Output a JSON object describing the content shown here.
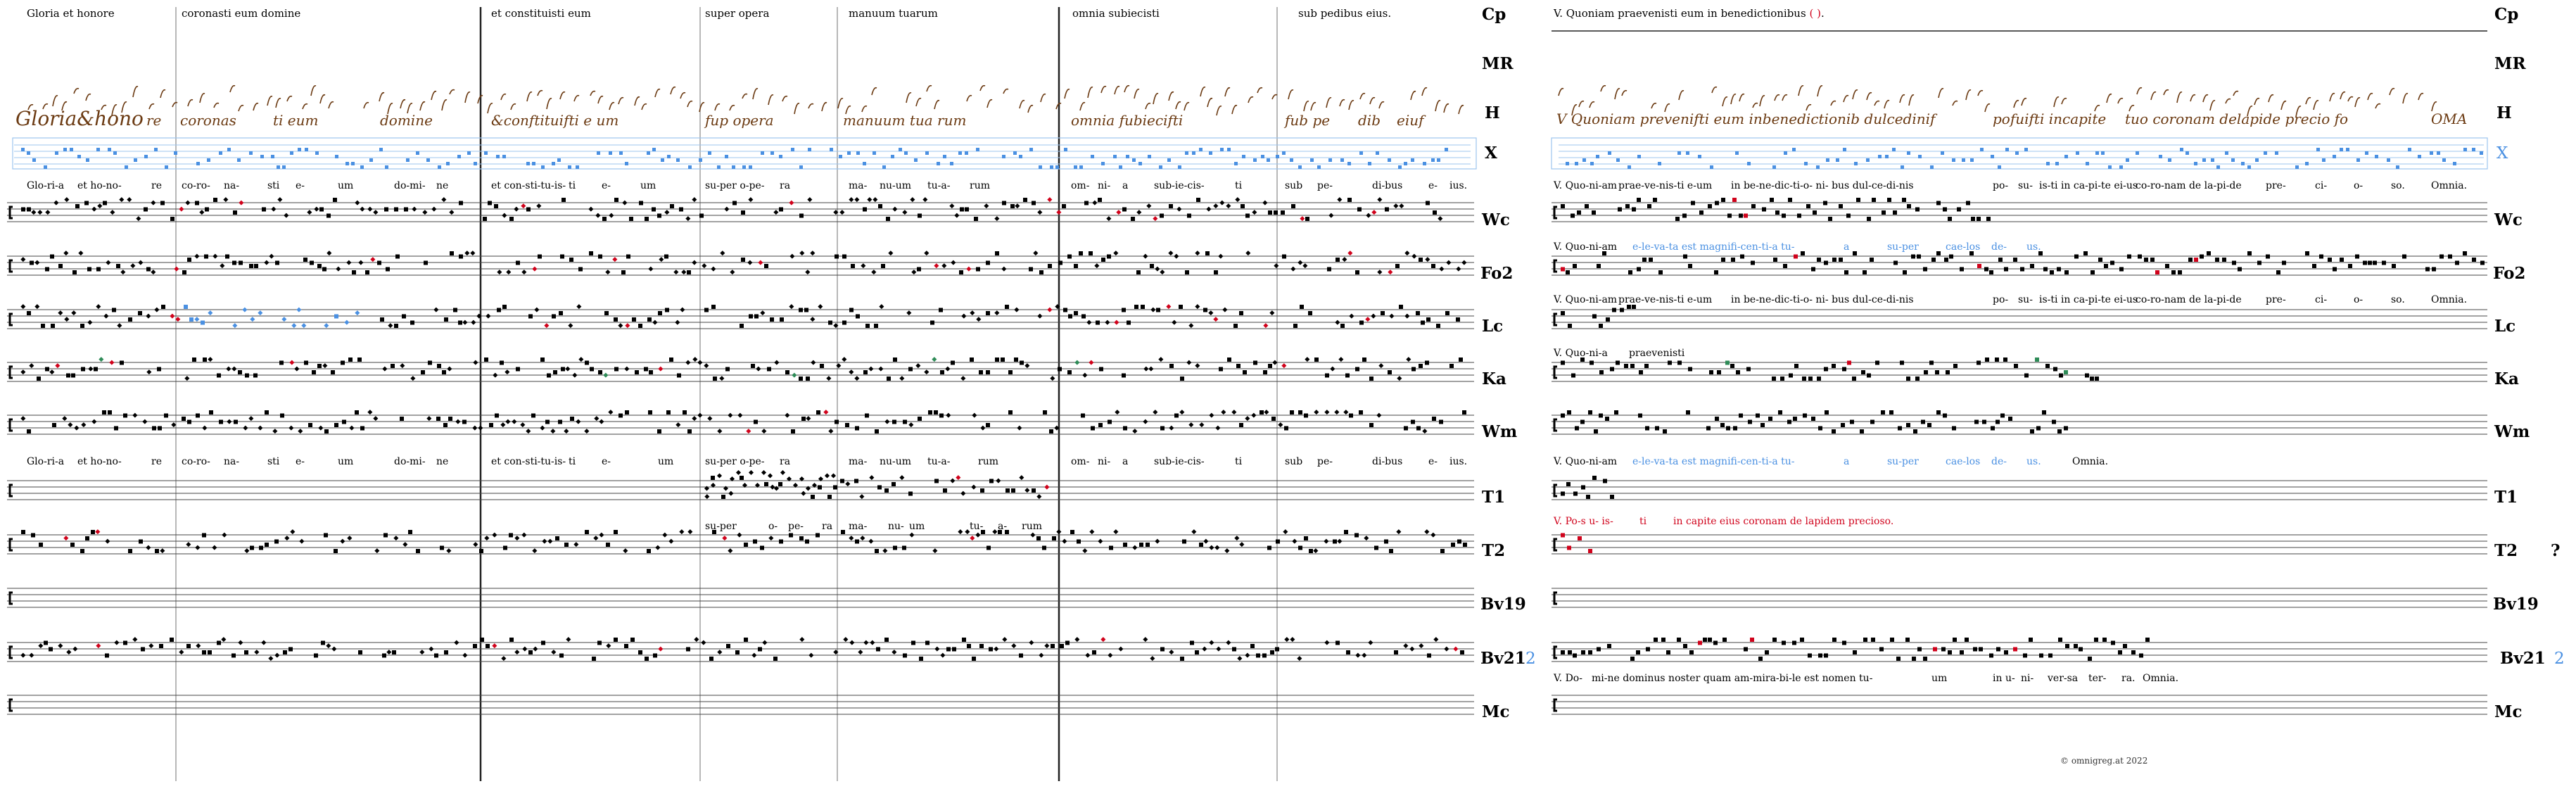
{
  "left_panel": {
    "header_segments": [
      "Gloria et honore",
      "coronasti eum domine",
      "et constituisti eum",
      "super opera",
      "manuum tuarum",
      "omnia subiecisti",
      "sub pedibus eius."
    ],
    "neume_words": [
      "Gloria&hono",
      "re",
      "coronas",
      "ti eum",
      "domine",
      "&conftituifti e um",
      "fup opera",
      "manuum tua rum",
      "omnia fubiecifti",
      "fub pe",
      "dib",
      "eiuf"
    ],
    "lyrics_x": [
      "Glo-ri-a",
      "et ho-no-",
      "re",
      "co-ro-",
      "na-",
      "sti",
      "e-",
      "um",
      "do-mi-",
      "ne"
    ],
    "lyrics_x_cont": [
      "et con-sti-tu-is-",
      "ti",
      "e-",
      "um",
      "su-per o-pe-",
      "ra",
      "ma-",
      "nu-um",
      "tu-a-",
      "rum",
      "om-",
      "ni-",
      "a",
      "sub-ie-cis-",
      "ti",
      "sub",
      "pe-",
      "di-bus",
      "e-",
      "ius."
    ],
    "lyrics_wm": [
      "Glo-ri-a",
      "et ho-no-",
      "re",
      "co-ro-",
      "na-",
      "sti",
      "e-",
      "um",
      "do-mi-",
      "ne",
      "et con-sti-tu-is-",
      "ti",
      "e-",
      "um",
      "su-per o-pe-",
      "ra",
      "ma-",
      "nu-um",
      "tu-a-",
      "rum",
      "om-",
      "ni-",
      "a",
      "sub-ie-cis-",
      "ti",
      "sub",
      "pe-",
      "di-bus",
      "e-",
      "ius."
    ],
    "lyrics_t1": [
      "su-per",
      "o-",
      "pe-",
      "ra",
      "ma-",
      "nu-",
      "um",
      "tu-",
      "a-",
      "rum"
    ]
  },
  "right_panel": {
    "header": "V. Quoniam praevenisti eum in benedictionibus",
    "header_paren": "( )",
    "neume_words": [
      "V Quoniam prevenifti eum inbenedictionib dulcedinif",
      "pofuifti incapite",
      "tuo coronam delapide precio fo",
      "OMA"
    ],
    "lyrics_x": [
      "V. Quo-ni-am",
      "prae-ve-nis-ti e-um",
      "in be-ne-dic-ti-o- ni- bus dul-ce-di-nis",
      "po-",
      "su-",
      "is-ti in ca-pi-te ei-us",
      "co-ro-nam de la-pi-de",
      "pre-",
      "ci-",
      "o-",
      "so.",
      "Omnia."
    ],
    "lyrics_wc": [
      "V. Quo-ni-am"
    ],
    "lyrics_wc_blue": [
      "e-le-va-ta est magnifi-cen-ti-a tu-",
      "a",
      "su-per",
      "cae-los",
      "de-",
      "us."
    ],
    "lyrics_fo2": [
      "V. Quo-ni-am",
      "prae-ve-nis-ti e-um",
      "in be-ne-dic-ti-o- ni- bus dul-ce-di-nis",
      "po-",
      "su-",
      "is-ti in ca-pi-te ei-us",
      "co-ro-nam de la-pi-de",
      "pre-",
      "ci-",
      "o-",
      "so.",
      "Omnia."
    ],
    "lyrics_lc": [
      "V. Quo-ni-a",
      "praevenisti"
    ],
    "lyrics_wm": [
      "V. Quo-ni-am"
    ],
    "lyrics_wm_blue": [
      "e-le-va-ta est magnifi-cen-ti-a tu-",
      "a",
      "su-per",
      "cae-los",
      "de-",
      "us."
    ],
    "lyrics_wm_end": "Omnia.",
    "lyrics_t1_red": [
      "V. Po-s u- is-",
      "ti",
      "in capite eius coronam de lapidem precioso."
    ],
    "lyrics_bv21": [
      "V. Do-",
      "mi-ne dominus noster quam am-mira-bi-le est nomen tu-",
      "um",
      "in u-",
      "ni-",
      "ver-sa",
      "ter-",
      "ra.",
      "Omnia."
    ],
    "q_mark": "?",
    "bv21_num": "2"
  },
  "row_labels": [
    "Cp",
    "MR",
    "H",
    "X",
    "Wc",
    "Fo2",
    "Lc",
    "Ka",
    "Wm",
    "T1",
    "T2",
    "Bv19",
    "Bv21",
    "Mc"
  ],
  "left_bv21_num": "2",
  "copyright": "© omnigreg.at   2022",
  "colors": {
    "blue": "#4a90e2",
    "red": "#d0021b",
    "green": "#2e8b57",
    "brown": "#6b3a12",
    "staffline": "#444",
    "lightblue": "#9cc4ee"
  }
}
